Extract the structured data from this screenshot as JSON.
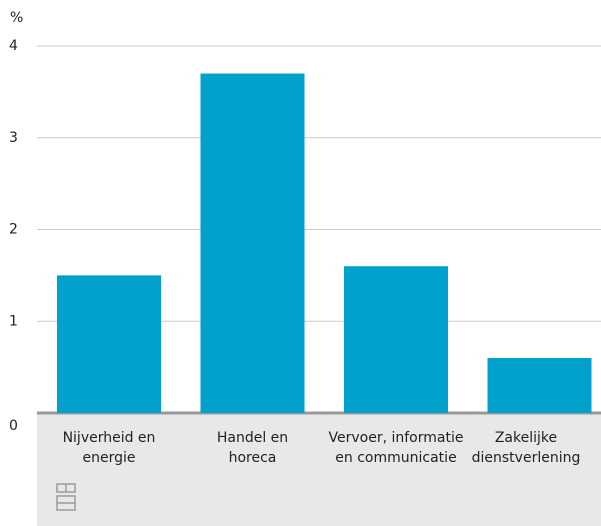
{
  "chart_data": {
    "type": "bar",
    "y_unit": "%",
    "categories": [
      "Nijverheid en\nenergie",
      "Handel en\nhoreca",
      "Vervoer, informatie\nen communicatie",
      "Zakelijke\ndienstverlening"
    ],
    "values": [
      1.5,
      3.7,
      1.6,
      0.6
    ],
    "color": "#00a1cd",
    "ylim": [
      0,
      4
    ],
    "yticks": [
      0,
      1,
      2,
      3,
      4
    ],
    "grid": true
  }
}
